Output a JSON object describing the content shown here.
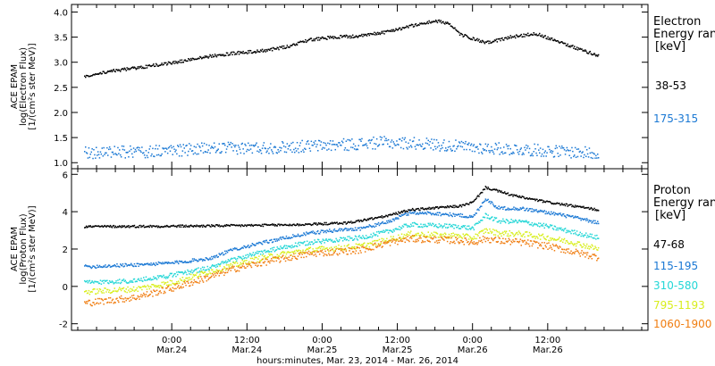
{
  "chart_data": [
    {
      "type": "scatter",
      "panel": "electron",
      "ylabel_lines": [
        "ACE EPAM",
        "log(Electron Flux)",
        "[1/(cm²s ster MeV)]"
      ],
      "legend_title_lines": [
        "Electron",
        "Energy ran",
        "[keV]"
      ],
      "ylim": [
        0.88,
        4.15
      ],
      "yticks": [
        1.0,
        1.5,
        2.0,
        2.5,
        3.0,
        3.5,
        4.0
      ],
      "ytick_labels": [
        "1.0",
        "1.5",
        "2.0",
        "2.5",
        "3.0",
        "3.5",
        "4.0"
      ],
      "series": [
        {
          "name": "38-53",
          "color": "#000000",
          "x": [
            -14,
            -10,
            -6,
            -2,
            2,
            6,
            10,
            14,
            18,
            22,
            26,
            30,
            34,
            38,
            42,
            44,
            46,
            50,
            54,
            58,
            62,
            64,
            68
          ],
          "y": [
            2.72,
            2.82,
            2.88,
            2.95,
            3.03,
            3.12,
            3.18,
            3.22,
            3.3,
            3.45,
            3.5,
            3.52,
            3.6,
            3.72,
            3.82,
            3.78,
            3.55,
            3.38,
            3.5,
            3.57,
            3.4,
            3.3,
            3.13
          ]
        },
        {
          "name": "175-315",
          "color": "#1a78d4",
          "x": [
            -14,
            -4,
            6,
            16,
            26,
            34,
            40,
            48,
            58,
            68
          ],
          "y": [
            1.2,
            1.22,
            1.28,
            1.3,
            1.35,
            1.4,
            1.38,
            1.3,
            1.25,
            1.18
          ]
        }
      ]
    },
    {
      "type": "scatter",
      "panel": "proton",
      "ylabel_lines": [
        "ACE EPAM",
        "log(Proton Flux)",
        "[1/(cm²s ster MeV)]"
      ],
      "legend_title_lines": [
        "Proton",
        "Energy ran",
        "[keV]"
      ],
      "ylim": [
        -2.35,
        6.3
      ],
      "yticks": [
        -2,
        0,
        2,
        4,
        6
      ],
      "ytick_labels": [
        "-2",
        "0",
        "2",
        "4",
        "6"
      ],
      "series": [
        {
          "name": "47-68",
          "color": "#000000",
          "x": [
            -14,
            0,
            10,
            20,
            28,
            34,
            38,
            42,
            46,
            48,
            50,
            52,
            54,
            56,
            60,
            64,
            68
          ],
          "y": [
            3.2,
            3.22,
            3.25,
            3.3,
            3.4,
            3.75,
            4.1,
            4.2,
            4.3,
            4.5,
            5.3,
            5.1,
            4.9,
            4.75,
            4.5,
            4.3,
            4.1
          ]
        },
        {
          "name": "115-195",
          "color": "#1a78d4",
          "x": [
            -14,
            -6,
            0,
            6,
            10,
            14,
            18,
            22,
            26,
            30,
            34,
            38,
            42,
            46,
            48,
            50,
            52,
            56,
            60,
            64,
            68
          ],
          "y": [
            1.05,
            1.15,
            1.25,
            1.5,
            2.0,
            2.3,
            2.6,
            2.85,
            3.0,
            3.1,
            3.4,
            3.95,
            3.9,
            3.8,
            3.7,
            4.7,
            4.2,
            4.15,
            3.95,
            3.7,
            3.4
          ]
        },
        {
          "name": "310-580",
          "color": "#22d6d6",
          "x": [
            -14,
            -6,
            0,
            6,
            10,
            14,
            18,
            22,
            26,
            30,
            34,
            38,
            42,
            46,
            48,
            50,
            52,
            56,
            60,
            64,
            68
          ],
          "y": [
            0.2,
            0.3,
            0.6,
            1.0,
            1.45,
            1.8,
            2.1,
            2.35,
            2.5,
            2.6,
            2.9,
            3.3,
            3.25,
            3.2,
            3.1,
            3.8,
            3.5,
            3.45,
            3.2,
            2.9,
            2.6
          ]
        },
        {
          "name": "795-1193",
          "color": "#d8ee1c",
          "x": [
            -14,
            -6,
            0,
            6,
            10,
            14,
            18,
            22,
            26,
            30,
            34,
            38,
            42,
            46,
            48,
            50,
            52,
            56,
            60,
            64,
            68
          ],
          "y": [
            -0.3,
            -0.15,
            0.2,
            0.8,
            1.15,
            1.5,
            1.75,
            1.95,
            2.05,
            2.15,
            2.45,
            2.8,
            2.75,
            2.7,
            2.6,
            3.0,
            2.85,
            2.8,
            2.6,
            2.35,
            2.0
          ]
        },
        {
          "name": "1060-1900",
          "color": "#f07d10",
          "x": [
            -14,
            -6,
            0,
            6,
            10,
            14,
            18,
            22,
            26,
            30,
            34,
            38,
            42,
            46,
            48,
            50,
            52,
            56,
            60,
            64,
            68
          ],
          "y": [
            -0.9,
            -0.6,
            -0.1,
            0.5,
            0.95,
            1.25,
            1.5,
            1.75,
            1.85,
            1.95,
            2.3,
            2.55,
            2.5,
            2.45,
            2.35,
            2.55,
            2.45,
            2.35,
            2.15,
            1.85,
            1.55
          ]
        }
      ]
    }
  ],
  "x_axis": {
    "xlim": [
      -16,
      76
    ],
    "ticks": [
      0,
      12,
      24,
      36,
      48,
      60
    ],
    "tick_labels_time": [
      "0:00",
      "12:00",
      "0:00",
      "12:00",
      "0:00",
      "12:00"
    ],
    "tick_labels_date": [
      "Mar.24",
      "Mar.24",
      "Mar.25",
      "Mar.25",
      "Mar.26",
      "Mar.26"
    ],
    "minor_step": 3,
    "label": "hours:minutes, Mar. 23, 2014 - Mar. 26, 2014"
  },
  "colors": {
    "axes": "#000000",
    "background": "#ffffff"
  }
}
